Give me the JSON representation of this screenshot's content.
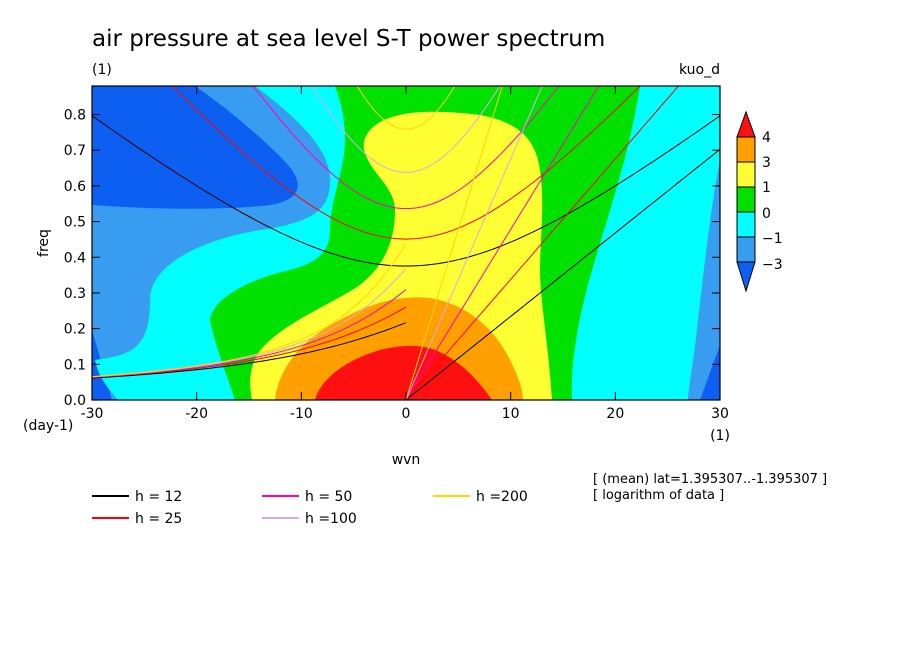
{
  "colors": {
    "level_m3": "#0c5ff0",
    "level_m1": "#389cf0",
    "level_0": "#00ffff",
    "level_1": "#00e100",
    "level_3": "#ffff33",
    "level_4": "#ffa000",
    "level_top": "#ff1010",
    "h12": "#000000",
    "h25": "#ff0000",
    "h50": "#ff00bb",
    "h100": "#e0a8e0",
    "h200": "#ffd700"
  },
  "chart_data": {
    "type": "heatmap",
    "title": "air pressure at sea level S-T power spectrum",
    "units_label": "(1)",
    "model_label": "kuo_d",
    "xlabel": "wvn",
    "ylabel": "freq",
    "x_unit": "(1)",
    "y_unit": "(day-1)",
    "xlim": [
      -30,
      30
    ],
    "ylim": [
      0,
      0.88
    ],
    "x_ticks": [
      -30,
      -20,
      -10,
      0,
      10,
      20,
      30
    ],
    "y_ticks": [
      0.0,
      0.1,
      0.2,
      0.3,
      0.4,
      0.5,
      0.6,
      0.7,
      0.8
    ],
    "y_tick_labels": [
      "0.0",
      "0.1",
      "0.2",
      "0.3",
      "0.4",
      "0.5",
      "0.6",
      "0.7",
      "0.8"
    ],
    "colorbar_levels": [
      "4",
      "3",
      "1",
      "0",
      "−1",
      "−3"
    ],
    "annotation_line1": "[ (mean) lat=1.395307..-1.395307 ]",
    "annotation_line2": "[ logarithm of data ]",
    "dispersion_curves": [
      {
        "name": "h = 12",
        "h": 12
      },
      {
        "name": "h = 25",
        "h": 25
      },
      {
        "name": "h = 50",
        "h": 50
      },
      {
        "name": "h =100",
        "h": 100
      },
      {
        "name": "h =200",
        "h": 200
      }
    ]
  }
}
